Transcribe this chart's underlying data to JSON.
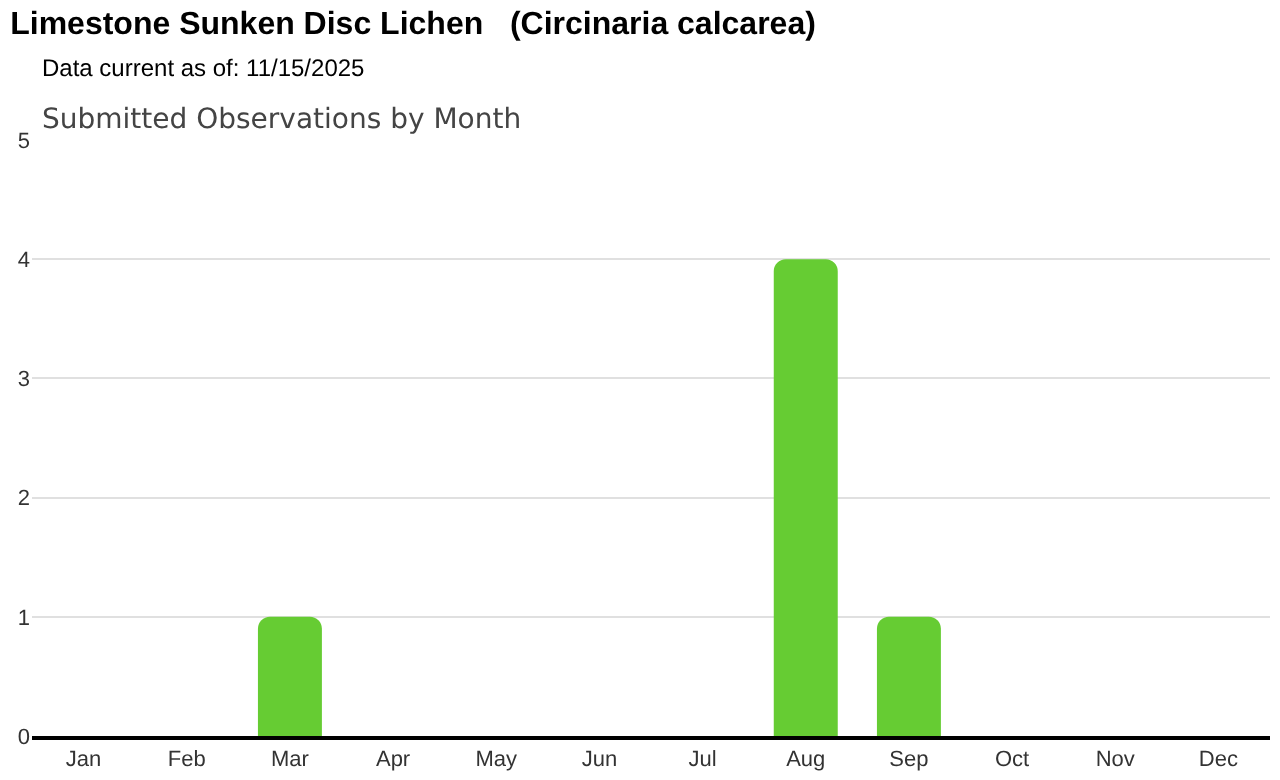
{
  "chart_data": {
    "type": "bar",
    "title": "Limestone Sunken Disc Lichen   (Circinaria calcarea)",
    "subtitle": "Data current as of: 11/15/2025",
    "annotations": [
      "Submitted Observations by Month"
    ],
    "categories": [
      "Jan",
      "Feb",
      "Mar",
      "Apr",
      "May",
      "Jun",
      "Jul",
      "Aug",
      "Sep",
      "Oct",
      "Nov",
      "Dec"
    ],
    "values": [
      0,
      0,
      1,
      0,
      0,
      0,
      0,
      4,
      1,
      0,
      0,
      0
    ],
    "color": "#66cc33",
    "ylim": [
      0,
      5
    ],
    "yticks": [
      0,
      1,
      2,
      3,
      4,
      5
    ],
    "grid": "y"
  }
}
